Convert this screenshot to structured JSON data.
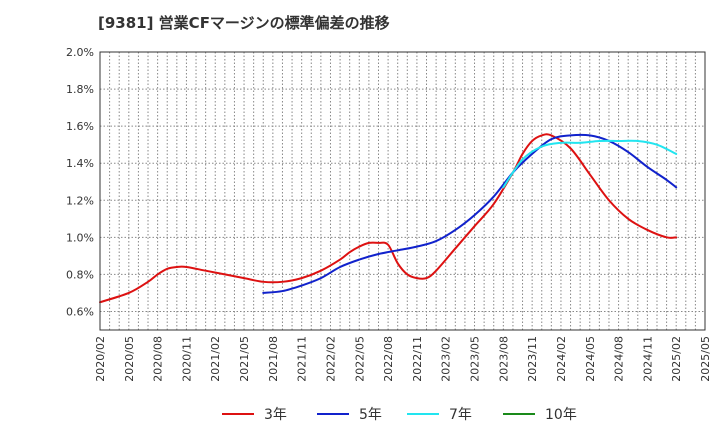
{
  "title": "[9381]  営業CFマージンの標準偏差の推移",
  "colors": {
    "3y": "#dd1111",
    "5y": "#1122cc",
    "7y": "#22e5f0",
    "10y": "#1a8a1a",
    "grid": "#888888",
    "axis": "#333333"
  },
  "chart_data": {
    "type": "line",
    "title": "[9381]  営業CFマージンの標準偏差の推移",
    "xlabel": "",
    "ylabel": "",
    "ylim": [
      0.5,
      2.0
    ],
    "yticks": [
      "2.0%",
      "1.8%",
      "1.6%",
      "1.4%",
      "1.2%",
      "1.0%",
      "0.8%",
      "0.6%"
    ],
    "ytick_values": [
      2.0,
      1.8,
      1.6,
      1.4,
      1.2,
      1.0,
      0.8,
      0.6
    ],
    "x_range": [
      "2020-02",
      "2025-05"
    ],
    "xticks": [
      "2020/02",
      "2020/05",
      "2020/08",
      "2020/11",
      "2021/02",
      "2021/05",
      "2021/08",
      "2021/11",
      "2022/02",
      "2022/05",
      "2022/08",
      "2022/11",
      "2023/02",
      "2023/05",
      "2023/08",
      "2023/11",
      "2024/02",
      "2024/05",
      "2024/08",
      "2024/11",
      "2025/02",
      "2025/05"
    ],
    "grid": true,
    "legend_position": "bottom",
    "series": [
      {
        "name": "3年",
        "color_key": "3y",
        "x": [
          "2020-02",
          "2020-05",
          "2020-07",
          "2020-08",
          "2020-09",
          "2020-10",
          "2020-11",
          "2021-01",
          "2021-03",
          "2021-05",
          "2021-07",
          "2021-09",
          "2021-11",
          "2022-01",
          "2022-03",
          "2022-04",
          "2022-05",
          "2022-06",
          "2022-07",
          "2022-08",
          "2022-09",
          "2022-10",
          "2022-11",
          "2022-12",
          "2023-01",
          "2023-03",
          "2023-05",
          "2023-07",
          "2023-09",
          "2023-10",
          "2023-11",
          "2023-12",
          "2024-01",
          "2024-03",
          "2024-05",
          "2024-07",
          "2024-09",
          "2024-11",
          "2025-01",
          "2025-02"
        ],
        "values": [
          0.65,
          0.7,
          0.76,
          0.8,
          0.83,
          0.84,
          0.84,
          0.82,
          0.8,
          0.78,
          0.76,
          0.76,
          0.78,
          0.82,
          0.88,
          0.92,
          0.95,
          0.97,
          0.97,
          0.96,
          0.86,
          0.8,
          0.78,
          0.78,
          0.82,
          0.94,
          1.06,
          1.18,
          1.35,
          1.45,
          1.52,
          1.55,
          1.55,
          1.48,
          1.34,
          1.2,
          1.1,
          1.04,
          1.0,
          1.0
        ]
      },
      {
        "name": "5年",
        "color_key": "5y",
        "x": [
          "2021-07",
          "2021-09",
          "2021-11",
          "2022-01",
          "2022-03",
          "2022-05",
          "2022-07",
          "2022-09",
          "2022-11",
          "2023-01",
          "2023-03",
          "2023-05",
          "2023-07",
          "2023-09",
          "2023-11",
          "2024-01",
          "2024-03",
          "2024-05",
          "2024-07",
          "2024-09",
          "2024-11",
          "2025-01",
          "2025-02"
        ],
        "values": [
          0.7,
          0.71,
          0.74,
          0.78,
          0.84,
          0.88,
          0.91,
          0.93,
          0.95,
          0.98,
          1.04,
          1.12,
          1.22,
          1.35,
          1.45,
          1.53,
          1.55,
          1.55,
          1.52,
          1.46,
          1.38,
          1.31,
          1.27
        ]
      },
      {
        "name": "7年",
        "color_key": "7y",
        "x": [
          "2023-08",
          "2023-10",
          "2023-12",
          "2024-02",
          "2024-04",
          "2024-06",
          "2024-08",
          "2024-10",
          "2024-12",
          "2025-02"
        ],
        "values": [
          1.27,
          1.42,
          1.49,
          1.51,
          1.51,
          1.52,
          1.52,
          1.52,
          1.5,
          1.45
        ]
      },
      {
        "name": "10年",
        "color_key": "10y",
        "x": [],
        "values": []
      }
    ]
  }
}
